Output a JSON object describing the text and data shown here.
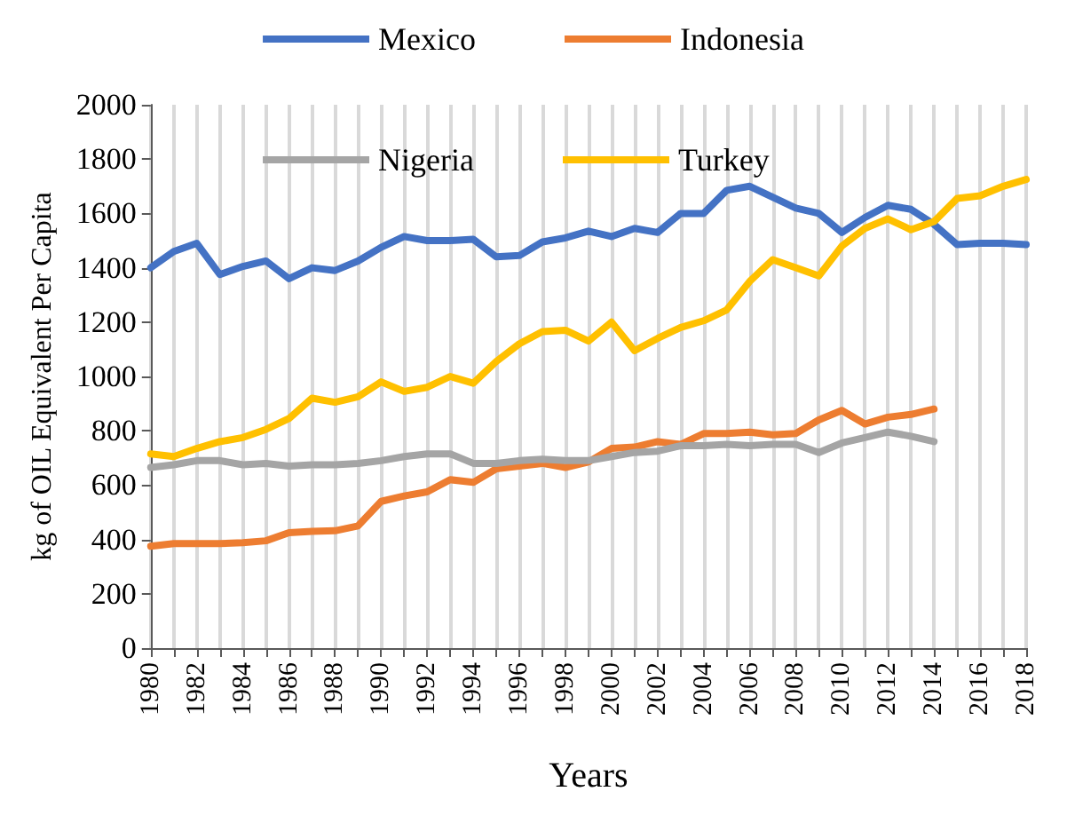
{
  "chart_data": {
    "type": "line",
    "xlabel": "Years",
    "ylabel": "kg of OIL Equivalent Per Capita",
    "categories": [
      "1980",
      null,
      "1982",
      null,
      "1984",
      null,
      "1986",
      null,
      "1988",
      null,
      "1990",
      null,
      "1992",
      null,
      "1994",
      null,
      "1996",
      null,
      "1998",
      null,
      "2000",
      null,
      "2002",
      null,
      "2004",
      null,
      "2006",
      null,
      "2008",
      null,
      "2010",
      null,
      "2012",
      null,
      "2014",
      null,
      "2016",
      null,
      "2018"
    ],
    "series": [
      {
        "name": "Mexico",
        "color": "#4472c4",
        "values": [
          1400,
          1460,
          1490,
          1375,
          1405,
          1425,
          1360,
          1400,
          1390,
          1425,
          1475,
          1515,
          1500,
          1500,
          1505,
          1440,
          1445,
          1495,
          1510,
          1535,
          1515,
          1545,
          1530,
          1600,
          1600,
          1685,
          1700,
          1660,
          1620,
          1600,
          1530,
          1585,
          1630,
          1615,
          1560,
          1485,
          1490,
          1490,
          1485
        ]
      },
      {
        "name": "Indonesia",
        "color": "#ed7d31",
        "values": [
          375,
          385,
          385,
          385,
          388,
          395,
          425,
          430,
          432,
          450,
          540,
          560,
          575,
          620,
          610,
          660,
          670,
          680,
          665,
          685,
          735,
          740,
          760,
          750,
          790,
          790,
          795,
          785,
          790,
          840,
          875,
          825,
          850,
          860,
          880,
          null,
          null,
          null,
          null
        ]
      },
      {
        "name": "Nigeria",
        "color": "#a5a5a5",
        "values": [
          665,
          675,
          690,
          690,
          675,
          680,
          670,
          675,
          675,
          680,
          690,
          705,
          715,
          715,
          680,
          680,
          690,
          695,
          690,
          690,
          705,
          720,
          725,
          745,
          745,
          750,
          745,
          750,
          750,
          720,
          755,
          775,
          795,
          780,
          760,
          null,
          null,
          null,
          null
        ]
      },
      {
        "name": "Turkey",
        "color": "#ffc000",
        "values": [
          715,
          705,
          735,
          760,
          775,
          805,
          845,
          920,
          905,
          925,
          980,
          945,
          960,
          1000,
          975,
          1055,
          1120,
          1165,
          1170,
          1130,
          1200,
          1095,
          1140,
          1180,
          1205,
          1245,
          1350,
          1430,
          1400,
          1370,
          1480,
          1545,
          1580,
          1540,
          1570,
          1655,
          1665,
          1700,
          1725
        ]
      }
    ],
    "ylim": [
      0,
      2000
    ],
    "yticks": [
      0,
      200,
      400,
      600,
      800,
      1000,
      1200,
      1400,
      1600,
      1800,
      2000
    ],
    "grid": "x",
    "legend": "top",
    "marker": "none",
    "line_style": "solid"
  }
}
